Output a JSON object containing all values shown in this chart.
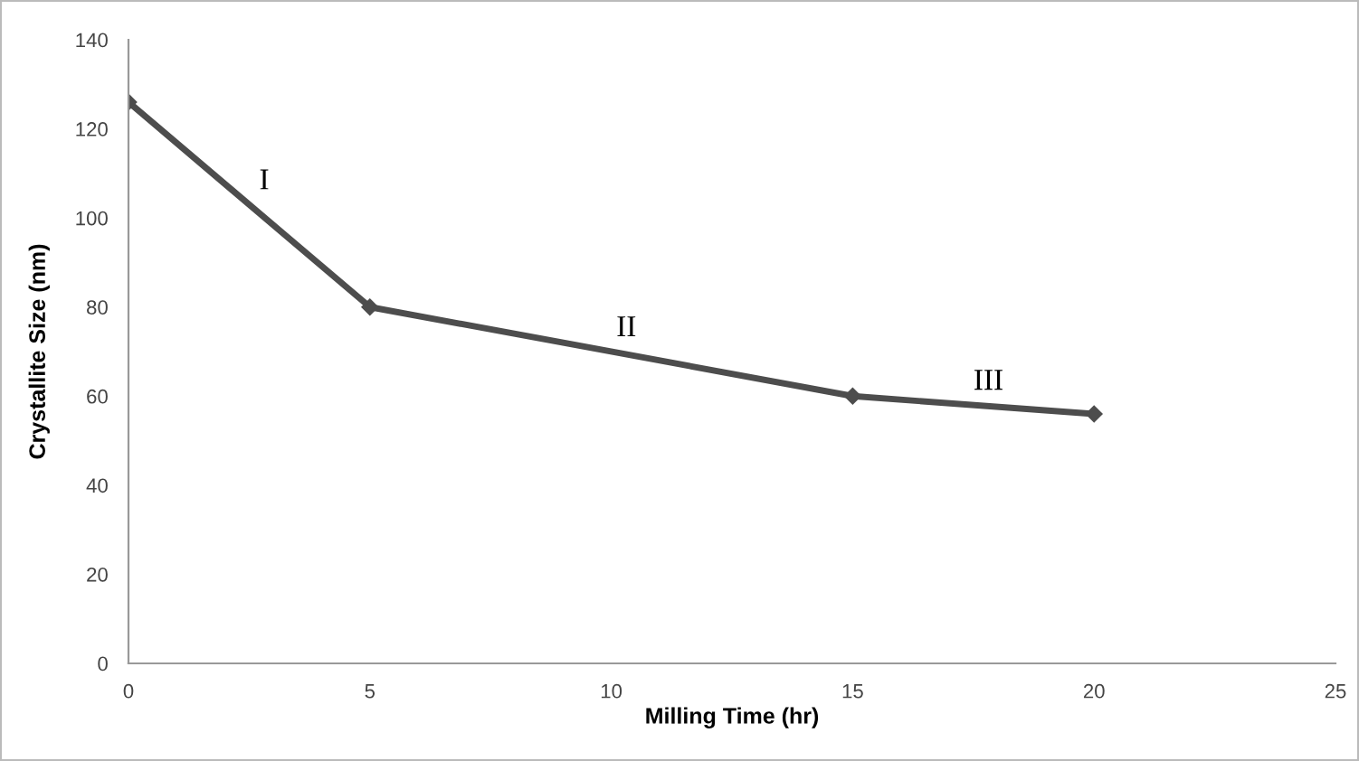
{
  "chart_data": {
    "type": "line",
    "xlabel": "Milling Time (hr)",
    "ylabel": "Crystallite Size (nm)",
    "x": [
      0,
      5,
      15,
      20
    ],
    "series": [
      {
        "color": "#4d4d4d",
        "values": [
          126,
          80,
          60,
          56
        ]
      }
    ],
    "xlim": [
      0,
      25
    ],
    "xticks": [
      0,
      5,
      10,
      15,
      20,
      25
    ],
    "ylim": [
      0,
      140
    ],
    "yticks": [
      0,
      20,
      40,
      60,
      80,
      100,
      120,
      140
    ],
    "marker": "diamond",
    "line_style": "solid",
    "grid": false,
    "legend": false,
    "annotations": [
      "I",
      "II",
      "III"
    ]
  }
}
